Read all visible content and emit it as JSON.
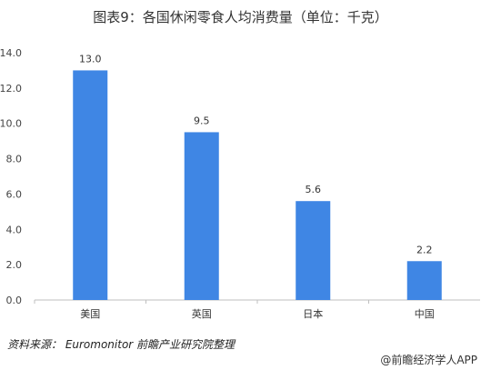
{
  "chart_data": {
    "type": "bar",
    "title": "图表9：各国休闲零食人均消费量（单位：千克）",
    "categories": [
      "美国",
      "英国",
      "日本",
      "中国"
    ],
    "values": [
      13.0,
      9.5,
      5.6,
      2.2
    ],
    "value_labels": [
      "13.0",
      "9.5",
      "5.6",
      "2.2"
    ],
    "ylim": [
      0,
      14
    ],
    "yticks": [
      "0.0",
      "2.0",
      "4.0",
      "6.0",
      "8.0",
      "10.0",
      "12.0",
      "14.0"
    ],
    "grid": false,
    "bar_color": "#3f86e4"
  },
  "source_note": "资料来源： Euromonitor  前瞻产业研究院整理",
  "credit": "@前瞻经济学人APP"
}
